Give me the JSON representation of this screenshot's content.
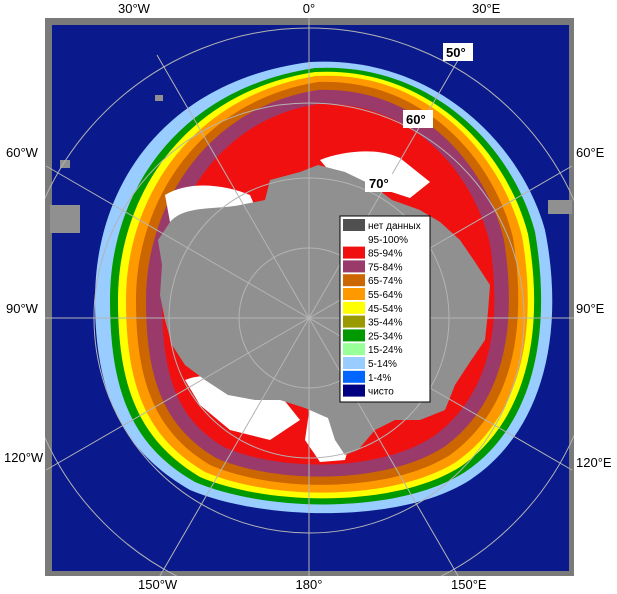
{
  "axis_labels": {
    "top": [
      "30°W",
      "0°",
      "30°E"
    ],
    "left": [
      "60°W",
      "90°W",
      "120°W"
    ],
    "right": [
      "60°E",
      "90°E",
      "120°E"
    ],
    "bottom": [
      "150°W",
      "180°",
      "150°E"
    ]
  },
  "lat_labels": [
    "50°",
    "60°",
    "70°"
  ],
  "legend": [
    {
      "label": "нет данных",
      "color": "#505050"
    },
    {
      "label": "95-100%",
      "color": "#ffffff"
    },
    {
      "label": "85-94%",
      "color": "#f01010"
    },
    {
      "label": "75-84%",
      "color": "#9a3a6a"
    },
    {
      "label": "65-74%",
      "color": "#cc6600"
    },
    {
      "label": "55-64%",
      "color": "#ff9900"
    },
    {
      "label": "45-54%",
      "color": "#ffff00"
    },
    {
      "label": "35-44%",
      "color": "#999900"
    },
    {
      "label": "25-34%",
      "color": "#009900"
    },
    {
      "label": "15-24%",
      "color": "#99ff99"
    },
    {
      "label": "5-14%",
      "color": "#99ccff"
    },
    {
      "label": "1-4%",
      "color": "#0066ff"
    },
    {
      "label": "чисто",
      "color": "#000080"
    }
  ],
  "colors": {
    "ocean": "#0a1a8c",
    "land": "#909090",
    "frame": "#7a7a7a",
    "grid": "#b4b4b4"
  }
}
